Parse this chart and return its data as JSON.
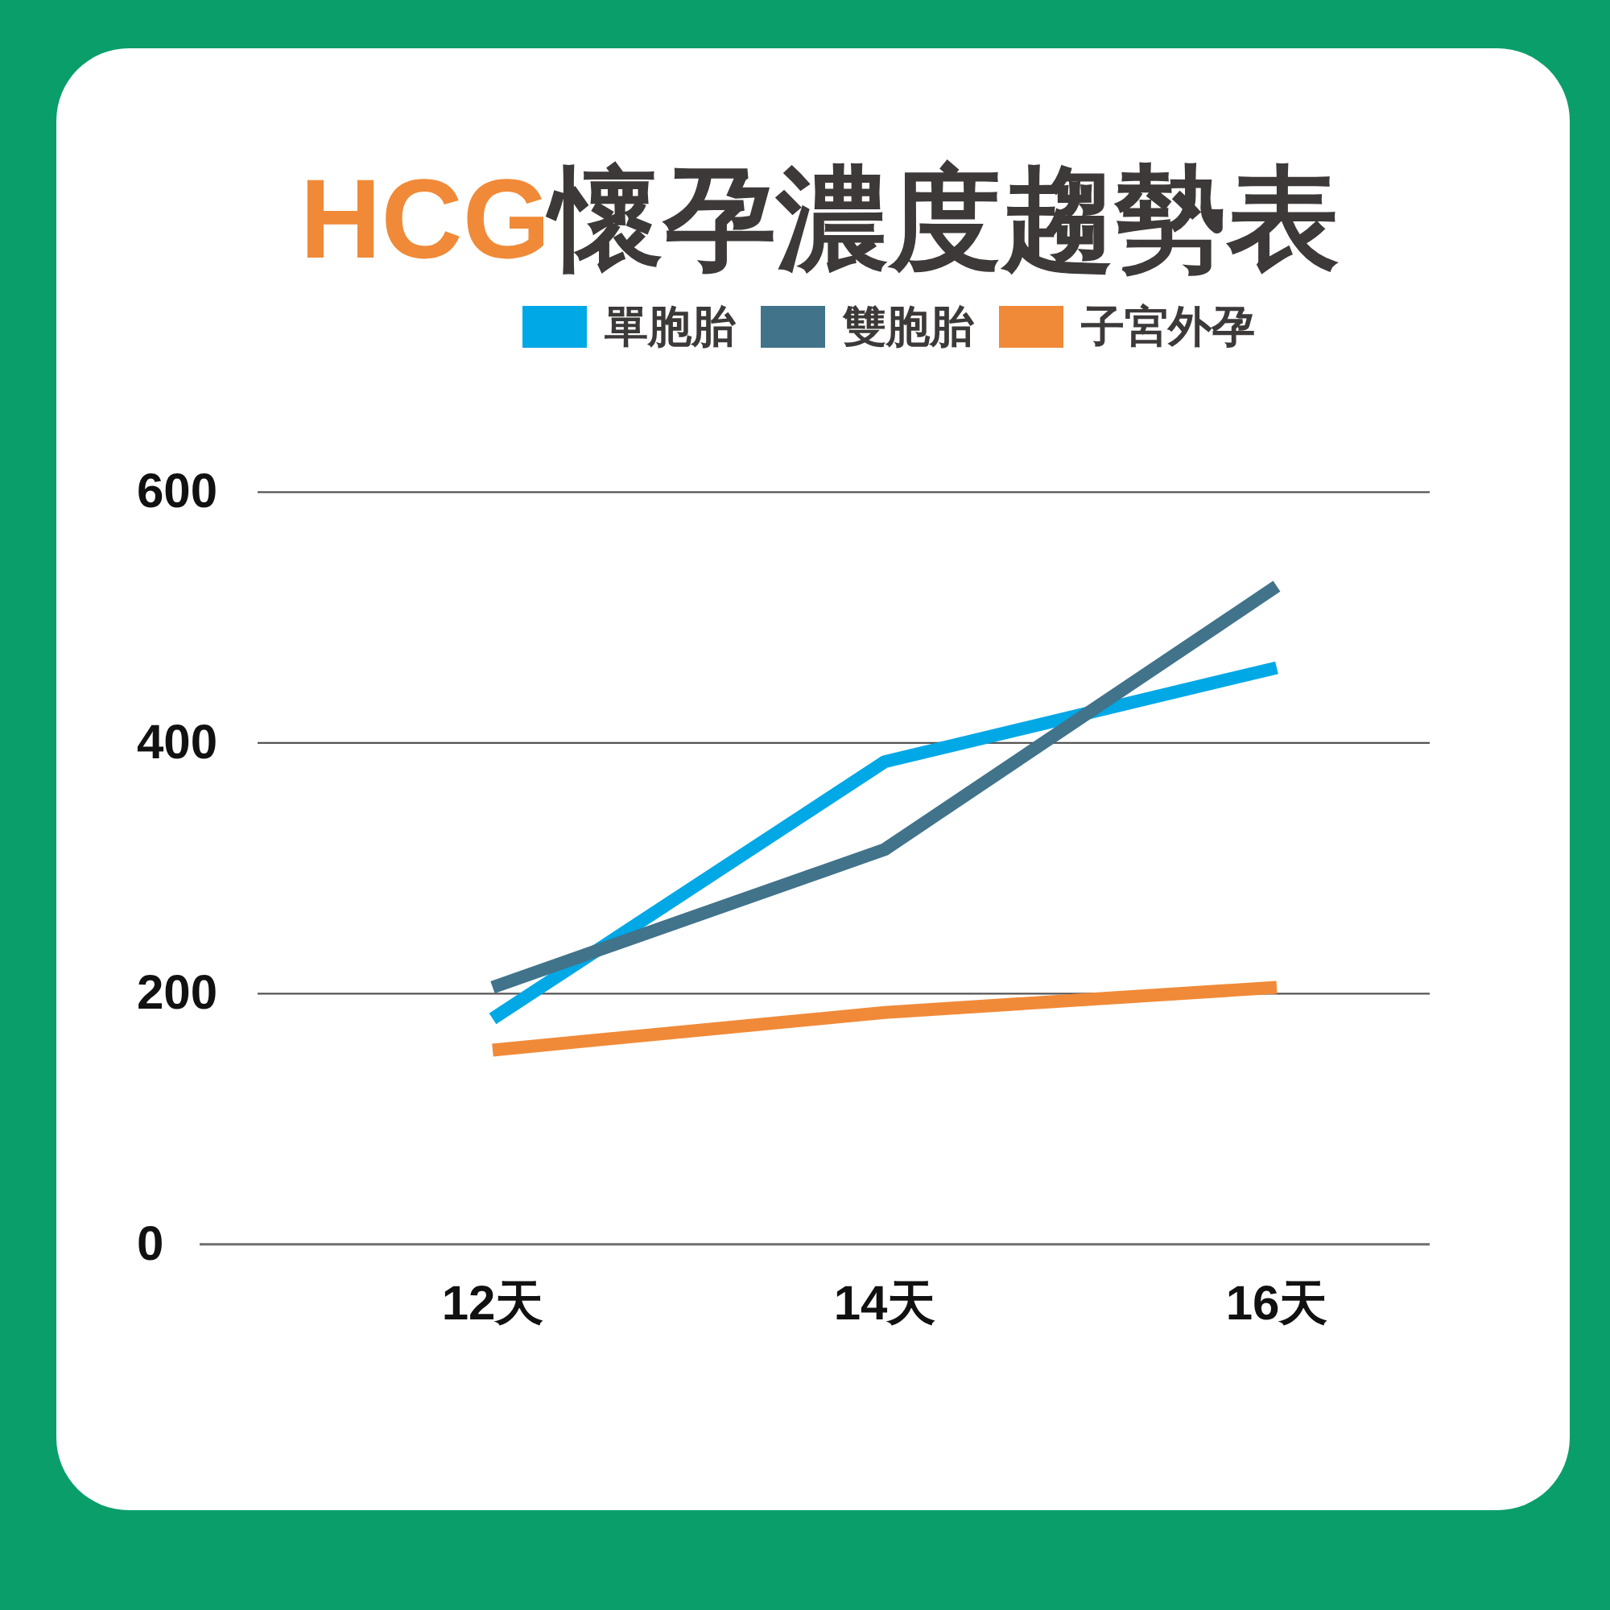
{
  "chart_data": {
    "type": "line",
    "title": "HCG懷孕濃度趨勢表",
    "categories": [
      "12天",
      "14天",
      "16天"
    ],
    "series": [
      {
        "name": "單胞胎",
        "color": "#00a8e6",
        "values": [
          180,
          385,
          460
        ]
      },
      {
        "name": "雙胞胎",
        "color": "#41738b",
        "values": [
          205,
          315,
          525
        ]
      },
      {
        "name": "子宮外孕",
        "color": "#f08a38",
        "values": [
          155,
          185,
          205
        ]
      }
    ],
    "ylim": [
      0,
      600
    ],
    "yticks": [
      0,
      200,
      400,
      600
    ],
    "grid": "y",
    "legend": "top",
    "line_style": "solid"
  }
}
